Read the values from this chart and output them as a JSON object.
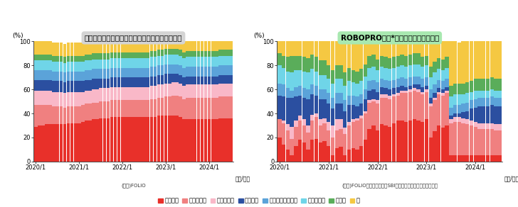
{
  "title_left": "一般的なロボアドバイザーにおける資産配分推移",
  "title_right": "ROBOPRO戦略*における資産配分推移",
  "source_left": "(出所)FOLIO",
  "source_right": "(出所)FOLIOのデータを基にSBI岡三アセットマネジメント作成",
  "colors": [
    "#e8302a",
    "#f08080",
    "#f9b8c8",
    "#2b4fa0",
    "#5ba3d9",
    "#6fd5e8",
    "#5aad5a",
    "#f5c842"
  ],
  "legend_labels": [
    "米国株式",
    "先進国株式",
    "新興国株式",
    "米国債券",
    "ハイイールド債券",
    "新興国債券",
    "不動産",
    "金"
  ],
  "title_left_bg": "#d4d4d4",
  "title_right_bg": "#a8e8b0",
  "n_bars": 55,
  "left_data": [
    [
      29,
      30,
      30,
      31,
      31,
      31,
      31,
      31,
      31,
      32,
      32,
      32,
      32,
      33,
      34,
      34,
      35,
      35,
      36,
      36,
      36,
      37,
      37,
      37,
      37,
      37,
      37,
      37,
      37,
      37,
      37,
      37,
      37,
      37,
      38,
      38,
      38,
      38,
      38,
      38,
      37,
      35,
      35,
      35,
      35,
      35,
      35,
      35,
      35,
      35,
      35,
      36,
      36,
      36,
      36
    ],
    [
      18,
      17,
      17,
      16,
      16,
      15,
      15,
      15,
      14,
      14,
      14,
      14,
      14,
      14,
      14,
      14,
      14,
      14,
      14,
      14,
      14,
      14,
      14,
      14,
      14,
      14,
      14,
      14,
      14,
      14,
      14,
      14,
      15,
      15,
      15,
      15,
      16,
      16,
      17,
      17,
      17,
      17,
      18,
      18,
      18,
      18,
      18,
      18,
      18,
      18,
      18,
      18,
      18,
      18,
      18
    ],
    [
      12,
      12,
      12,
      12,
      12,
      12,
      12,
      12,
      12,
      12,
      12,
      12,
      12,
      11,
      11,
      11,
      11,
      11,
      11,
      11,
      11,
      11,
      11,
      11,
      11,
      11,
      11,
      11,
      11,
      11,
      11,
      11,
      11,
      11,
      11,
      11,
      11,
      11,
      11,
      11,
      11,
      11,
      11,
      11,
      11,
      11,
      11,
      11,
      11,
      11,
      11,
      11,
      11,
      11,
      11
    ],
    [
      9,
      9,
      9,
      9,
      9,
      9,
      9,
      9,
      9,
      9,
      9,
      9,
      9,
      9,
      9,
      9,
      9,
      9,
      8,
      8,
      8,
      8,
      8,
      8,
      8,
      8,
      8,
      8,
      8,
      8,
      8,
      8,
      8,
      8,
      8,
      8,
      8,
      8,
      7,
      7,
      7,
      7,
      7,
      7,
      7,
      7,
      7,
      7,
      7,
      7,
      7,
      7,
      7,
      7,
      7
    ],
    [
      8,
      8,
      8,
      8,
      8,
      8,
      8,
      8,
      8,
      8,
      8,
      8,
      8,
      8,
      8,
      8,
      8,
      8,
      8,
      8,
      8,
      8,
      8,
      8,
      8,
      8,
      8,
      8,
      8,
      8,
      8,
      8,
      8,
      8,
      8,
      8,
      8,
      8,
      8,
      8,
      8,
      8,
      8,
      8,
      8,
      8,
      8,
      8,
      8,
      8,
      8,
      8,
      8,
      8,
      8
    ],
    [
      8,
      8,
      8,
      8,
      8,
      8,
      8,
      8,
      8,
      8,
      8,
      8,
      8,
      8,
      8,
      8,
      8,
      8,
      8,
      8,
      8,
      8,
      8,
      8,
      8,
      8,
      8,
      8,
      8,
      8,
      8,
      8,
      8,
      8,
      8,
      8,
      8,
      8,
      8,
      8,
      8,
      8,
      8,
      8,
      8,
      8,
      8,
      8,
      8,
      8,
      8,
      8,
      8,
      8,
      8
    ],
    [
      5,
      5,
      5,
      5,
      5,
      5,
      5,
      5,
      5,
      5,
      5,
      5,
      5,
      5,
      5,
      5,
      5,
      5,
      5,
      5,
      5,
      5,
      5,
      5,
      5,
      5,
      5,
      5,
      5,
      5,
      5,
      5,
      5,
      5,
      5,
      5,
      5,
      5,
      5,
      5,
      5,
      5,
      5,
      5,
      5,
      5,
      5,
      5,
      5,
      5,
      5,
      5,
      5,
      5,
      5
    ],
    [
      11,
      11,
      11,
      11,
      11,
      11,
      11,
      11,
      11,
      11,
      11,
      11,
      11,
      11,
      11,
      11,
      10,
      10,
      10,
      10,
      10,
      10,
      10,
      10,
      10,
      10,
      10,
      10,
      10,
      10,
      10,
      10,
      10,
      10,
      10,
      10,
      10,
      10,
      10,
      10,
      10,
      10,
      10,
      10,
      10,
      10,
      10,
      10,
      10,
      10,
      10,
      10,
      10,
      10,
      10
    ]
  ],
  "right_data": [
    [
      20,
      14,
      10,
      5,
      13,
      18,
      16,
      10,
      18,
      19,
      16,
      17,
      13,
      5,
      11,
      12,
      5,
      10,
      11,
      10,
      13,
      18,
      27,
      30,
      26,
      31,
      30,
      29,
      32,
      34,
      34,
      33,
      34,
      35,
      34,
      33,
      35,
      20,
      25,
      30,
      28,
      30,
      5,
      5,
      5,
      5,
      5,
      5,
      5,
      5,
      5,
      5,
      5,
      5,
      5
    ],
    [
      15,
      18,
      16,
      14,
      16,
      16,
      14,
      14,
      16,
      18,
      14,
      15,
      13,
      15,
      15,
      15,
      18,
      20,
      22,
      24,
      23,
      22,
      22,
      20,
      22,
      22,
      23,
      23,
      22,
      21,
      23,
      24,
      24,
      24,
      24,
      23,
      23,
      26,
      26,
      26,
      27,
      27,
      27,
      28,
      28,
      27,
      26,
      25,
      24,
      22,
      22,
      22,
      22,
      21,
      21
    ],
    [
      0,
      2,
      5,
      10,
      5,
      4,
      5,
      6,
      5,
      3,
      5,
      4,
      7,
      10,
      9,
      8,
      5,
      3,
      2,
      2,
      2,
      2,
      2,
      2,
      3,
      3,
      3,
      3,
      2,
      2,
      2,
      2,
      2,
      2,
      2,
      2,
      2,
      2,
      2,
      2,
      2,
      2,
      3,
      4,
      4,
      4,
      4,
      4,
      4,
      5,
      5,
      5,
      5,
      5,
      5
    ],
    [
      20,
      20,
      22,
      24,
      20,
      17,
      18,
      22,
      17,
      15,
      17,
      16,
      15,
      14,
      13,
      13,
      14,
      14,
      12,
      10,
      10,
      10,
      8,
      8,
      7,
      6,
      5,
      5,
      5,
      5,
      4,
      3,
      3,
      3,
      4,
      4,
      3,
      5,
      4,
      3,
      3,
      3,
      3,
      3,
      3,
      5,
      7,
      10,
      12,
      14,
      14,
      14,
      15,
      15,
      15
    ],
    [
      10,
      10,
      8,
      6,
      8,
      8,
      8,
      8,
      8,
      8,
      8,
      8,
      9,
      9,
      9,
      9,
      9,
      8,
      8,
      8,
      8,
      8,
      8,
      8,
      8,
      7,
      7,
      7,
      7,
      7,
      7,
      7,
      7,
      7,
      7,
      7,
      7,
      7,
      7,
      7,
      7,
      7,
      7,
      7,
      7,
      7,
      7,
      7,
      7,
      7,
      7,
      7,
      7,
      7,
      7
    ],
    [
      15,
      14,
      14,
      15,
      14,
      13,
      14,
      14,
      13,
      12,
      12,
      12,
      12,
      12,
      12,
      12,
      12,
      12,
      11,
      11,
      11,
      11,
      11,
      11,
      10,
      10,
      10,
      10,
      10,
      10,
      10,
      10,
      10,
      10,
      10,
      10,
      10,
      10,
      10,
      9,
      9,
      9,
      9,
      9,
      9,
      8,
      8,
      7,
      7,
      6,
      6,
      6,
      6,
      6,
      6
    ],
    [
      10,
      10,
      12,
      14,
      12,
      12,
      12,
      12,
      12,
      12,
      12,
      12,
      11,
      11,
      11,
      11,
      11,
      11,
      10,
      10,
      10,
      10,
      10,
      10,
      9,
      9,
      9,
      9,
      9,
      9,
      9,
      9,
      9,
      9,
      9,
      8,
      8,
      9,
      9,
      9,
      9,
      9,
      9,
      9,
      9,
      9,
      9,
      9,
      10,
      10,
      10,
      10,
      10,
      10,
      10
    ],
    [
      10,
      12,
      13,
      12,
      12,
      12,
      13,
      14,
      11,
      13,
      16,
      16,
      20,
      24,
      20,
      20,
      26,
      22,
      24,
      25,
      23,
      19,
      12,
      11,
      15,
      12,
      13,
      14,
      13,
      12,
      11,
      12,
      11,
      10,
      10,
      13,
      12,
      21,
      17,
      14,
      17,
      13,
      37,
      35,
      34,
      35,
      36,
      38,
      37,
      36,
      36,
      37,
      36,
      36,
      37
    ]
  ]
}
